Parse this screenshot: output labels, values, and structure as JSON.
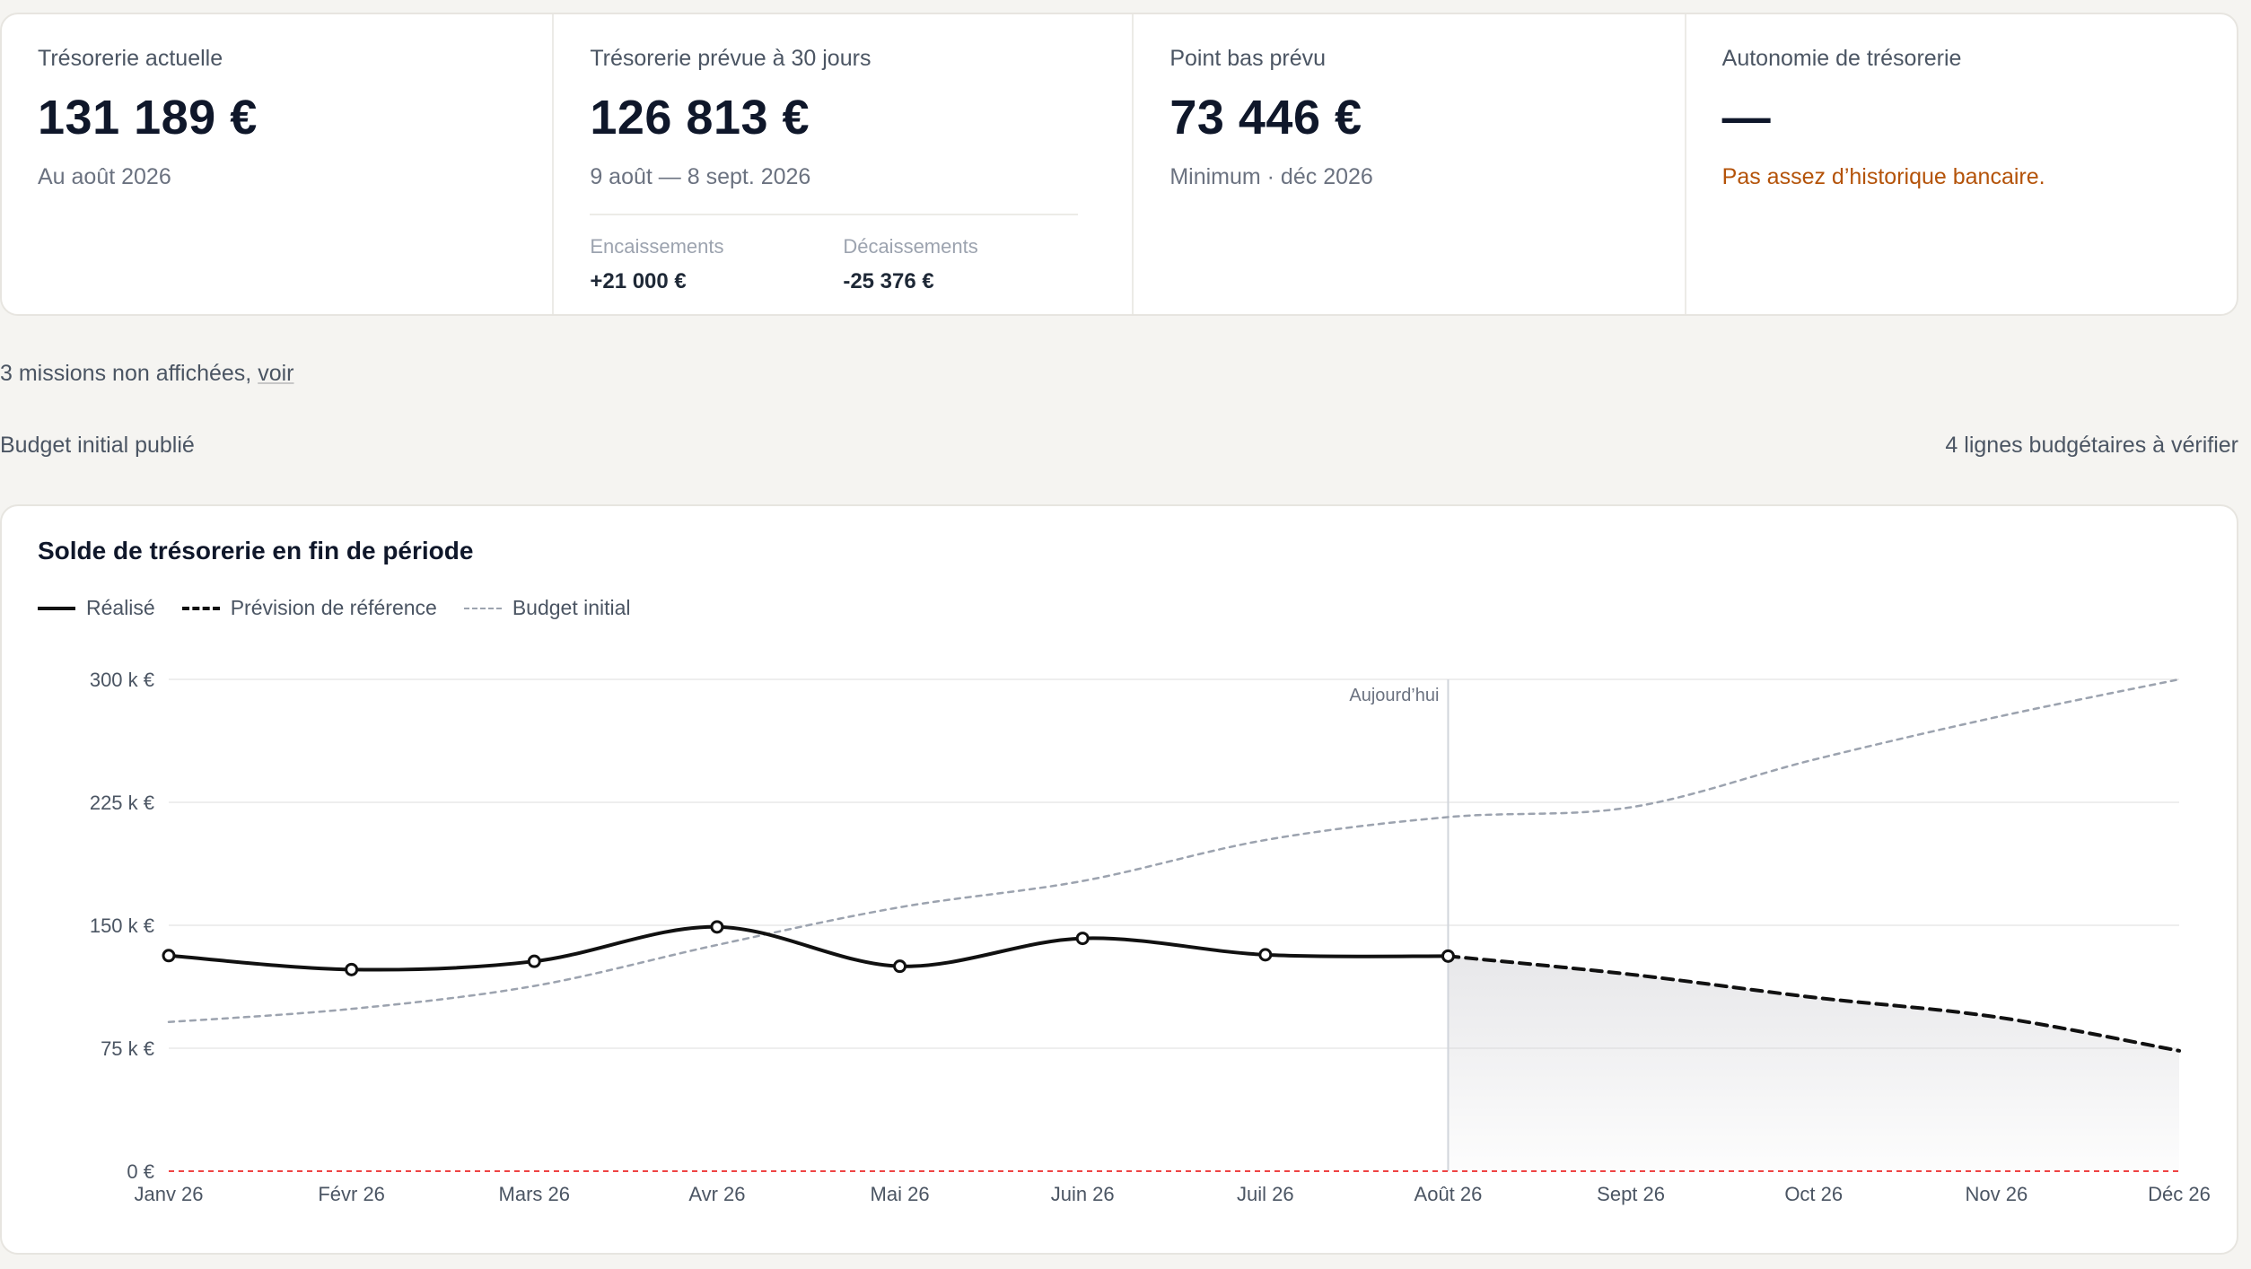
{
  "kpis": {
    "current": {
      "label": "Trésorerie actuelle",
      "value": "131 189 €",
      "sub": "Au août 2026"
    },
    "forecast30": {
      "label": "Trésorerie prévue à 30 jours",
      "value": "126 813 €",
      "sub": "9 août — 8 sept. 2026",
      "inflows_label": "Encaissements",
      "inflows_value": "+21 000 €",
      "outflows_label": "Décaissements",
      "outflows_value": "-25 376 €"
    },
    "low_point": {
      "label": "Point bas prévu",
      "value": "73 446 €",
      "sub": "Minimum · déc 2026"
    },
    "runway": {
      "label": "Autonomie de trésorerie",
      "value": "—",
      "warning": "Pas assez d’historique bancaire."
    }
  },
  "missions": {
    "text": "3 missions non affichées, ",
    "link": "voir"
  },
  "budget": {
    "status": "Budget initial publié",
    "lines_to_check": "4 lignes budgétaires à vérifier"
  },
  "chart_data": {
    "type": "line",
    "title": "Solde de trésorerie en fin de période",
    "categories": [
      "Janv 26",
      "Févr 26",
      "Mars 26",
      "Avr 26",
      "Mai 26",
      "Juin 26",
      "Juil 26",
      "Août 26",
      "Sept 26",
      "Oct 26",
      "Nov 26",
      "Déc 26"
    ],
    "y_ticks": [
      "0 €",
      "75 k €",
      "150 k €",
      "225 k €",
      "300 k €"
    ],
    "ylim": [
      0,
      300000
    ],
    "today_label": "Aujourd’hui",
    "today_category": "Août 26",
    "series": [
      {
        "name": "Réalisé",
        "style": "solid",
        "color": "#111111",
        "values": [
          131500,
          123000,
          128000,
          149000,
          125000,
          142000,
          132000,
          131189,
          null,
          null,
          null,
          null
        ]
      },
      {
        "name": "Prévision de référence",
        "style": "dashed",
        "color": "#111111",
        "values": [
          null,
          null,
          null,
          null,
          null,
          null,
          null,
          131189,
          120000,
          106000,
          94000,
          73446
        ]
      },
      {
        "name": "Budget initial",
        "style": "dotted",
        "color": "#9ca3af",
        "values": [
          91000,
          99000,
          113000,
          138000,
          161000,
          177000,
          202000,
          216000,
          222000,
          251000,
          277000,
          300000
        ]
      }
    ],
    "zero_line_color": "#ef4444",
    "grid": true,
    "legend_position": "top-left"
  }
}
